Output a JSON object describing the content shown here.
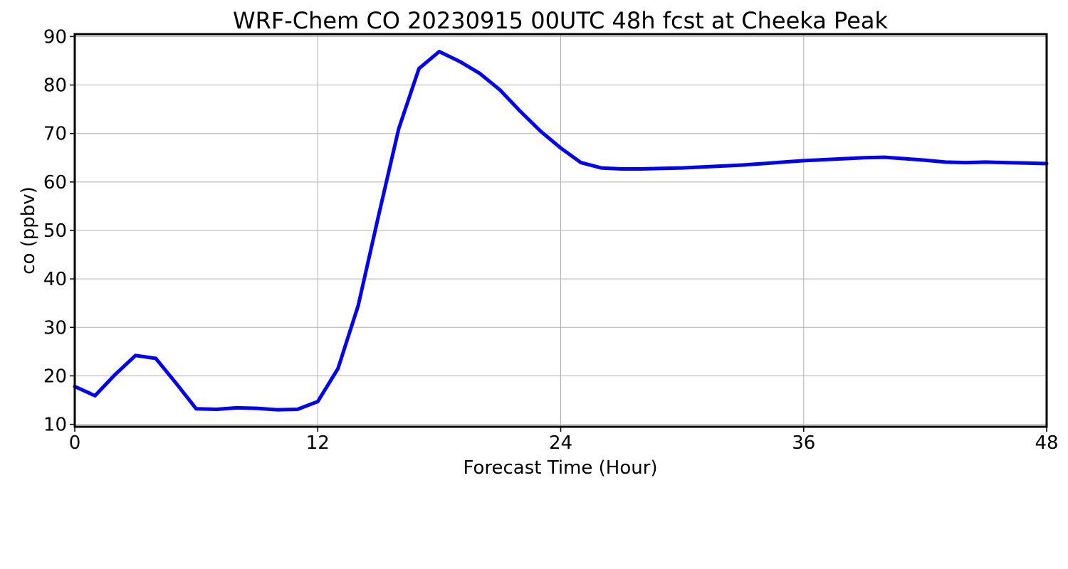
{
  "chart_data": {
    "type": "line",
    "title": "WRF-Chem CO  20230915 00UTC 48h fcst at Cheeka Peak",
    "xlabel": "Forecast Time (Hour)",
    "ylabel": "co  (ppbv)",
    "xlim": [
      0,
      48
    ],
    "ylim": [
      9.5,
      90.5
    ],
    "xticks": [
      0,
      12,
      24,
      36,
      48
    ],
    "yticks": [
      10,
      20,
      30,
      40,
      50,
      60,
      70,
      80,
      90
    ],
    "grid": true,
    "series": [
      {
        "color": "#0000ff",
        "x": [
          0,
          1,
          2,
          3,
          4,
          5,
          6,
          7,
          8,
          9,
          10,
          11,
          12,
          13,
          14,
          15,
          16,
          17,
          18,
          19,
          20,
          21,
          22,
          23,
          24,
          25,
          26,
          27,
          28,
          29,
          30,
          31,
          32,
          33,
          34,
          35,
          36,
          37,
          38,
          39,
          40,
          41,
          42,
          43,
          44,
          45,
          46,
          47,
          48
        ],
        "y": [
          17.8,
          15.9,
          20.3,
          24.2,
          23.6,
          18.5,
          13.2,
          13.1,
          13.4,
          13.3,
          13.0,
          13.1,
          14.7,
          21.5,
          34.5,
          53.0,
          71.0,
          83.4,
          86.9,
          84.9,
          82.4,
          79.0,
          74.6,
          70.5,
          67.0,
          64.0,
          62.9,
          62.7,
          62.7,
          62.8,
          62.9,
          63.1,
          63.3,
          63.5,
          63.8,
          64.1,
          64.4,
          64.6,
          64.8,
          65.0,
          65.1,
          64.8,
          64.5,
          64.1,
          64.0,
          64.1,
          64.0,
          63.9,
          63.8
        ]
      }
    ]
  }
}
